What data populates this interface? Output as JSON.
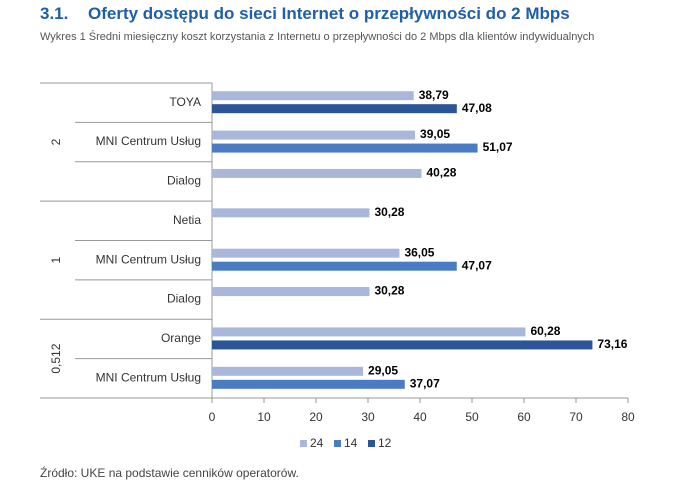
{
  "heading": {
    "number": "3.1.",
    "title": "Oferty dostępu do sieci Internet o przepływności do 2 Mbps"
  },
  "caption": "Wykres 1 Średni miesięczny koszt korzystania z Internetu o przepływności do 2 Mbps dla klientów indywidualnych",
  "chart_data": {
    "type": "bar",
    "orientation": "horizontal",
    "groups": [
      {
        "label": "2",
        "categories": [
          "TOYA",
          "MNI Centrum Usług",
          "Dialog"
        ]
      },
      {
        "label": "1",
        "categories": [
          "Netia",
          "MNI Centrum Usług",
          "Dialog"
        ]
      },
      {
        "label": "0,512",
        "categories": [
          "Orange",
          "MNI Centrum Usług"
        ]
      }
    ],
    "series": [
      {
        "name": "24",
        "color": "#a9b8da",
        "values": [
          38.79,
          39.05,
          40.28,
          30.28,
          36.05,
          30.28,
          60.28,
          29.05
        ],
        "value_labels": [
          "38,79",
          "39,05",
          "40,28",
          "30,28",
          "36,05",
          "30,28",
          "60,28",
          "29,05"
        ]
      },
      {
        "name": "14",
        "color": "#4a7cc4",
        "values": [
          null,
          51.07,
          null,
          null,
          47.07,
          null,
          null,
          37.07
        ],
        "value_labels": [
          null,
          "51,07",
          null,
          null,
          "47,07",
          null,
          null,
          "37,07"
        ]
      },
      {
        "name": "12",
        "color": "#2c5597",
        "values": [
          47.08,
          null,
          null,
          null,
          null,
          null,
          73.16,
          null
        ],
        "value_labels": [
          "47,08",
          null,
          null,
          null,
          null,
          null,
          "73,16",
          null
        ]
      }
    ],
    "xlim": [
      0,
      80
    ],
    "xticks": [
      0,
      10,
      20,
      30,
      40,
      50,
      60,
      70,
      80
    ],
    "grid": false,
    "legend": "bottom"
  },
  "source": "Źródło: UKE na podstawie cenników operatorów."
}
